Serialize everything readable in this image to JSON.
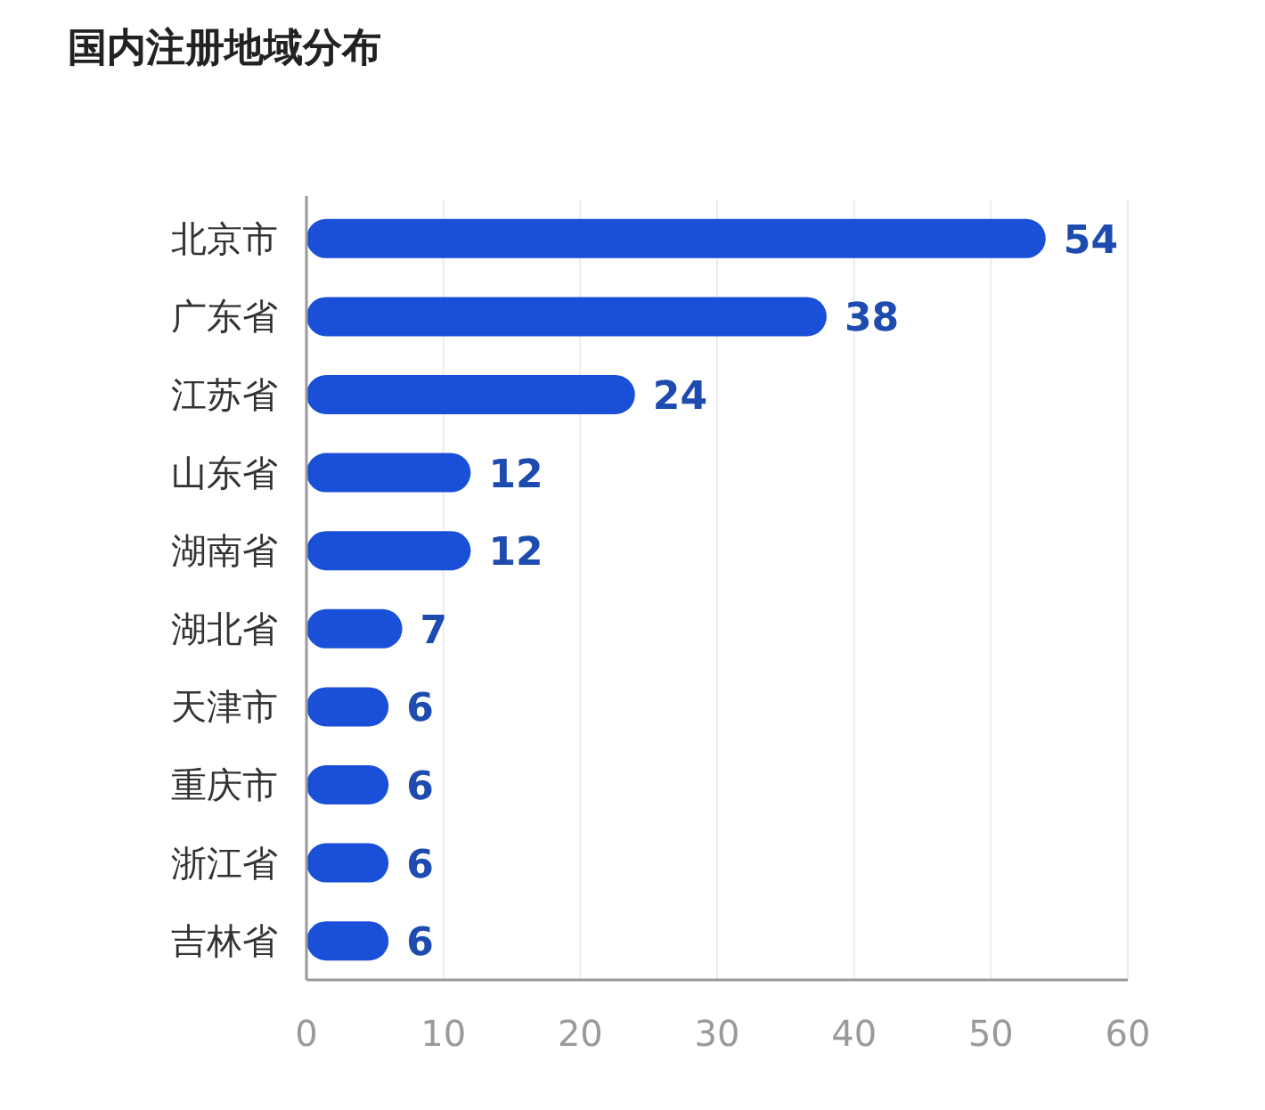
{
  "chart_data": {
    "type": "bar",
    "orientation": "horizontal",
    "title": "国内注册地域分布",
    "categories": [
      "北京市",
      "广东省",
      "江苏省",
      "山东省",
      "湖南省",
      "湖北省",
      "天津市",
      "重庆市",
      "浙江省",
      "吉林省"
    ],
    "values": [
      54,
      38,
      24,
      12,
      12,
      7,
      6,
      6,
      6,
      6
    ],
    "color": "#1a4fd8",
    "xlim": [
      0,
      60
    ],
    "xticks": [
      0,
      10,
      20,
      30,
      40,
      50,
      60
    ],
    "grid": "x",
    "data_labels": true
  }
}
